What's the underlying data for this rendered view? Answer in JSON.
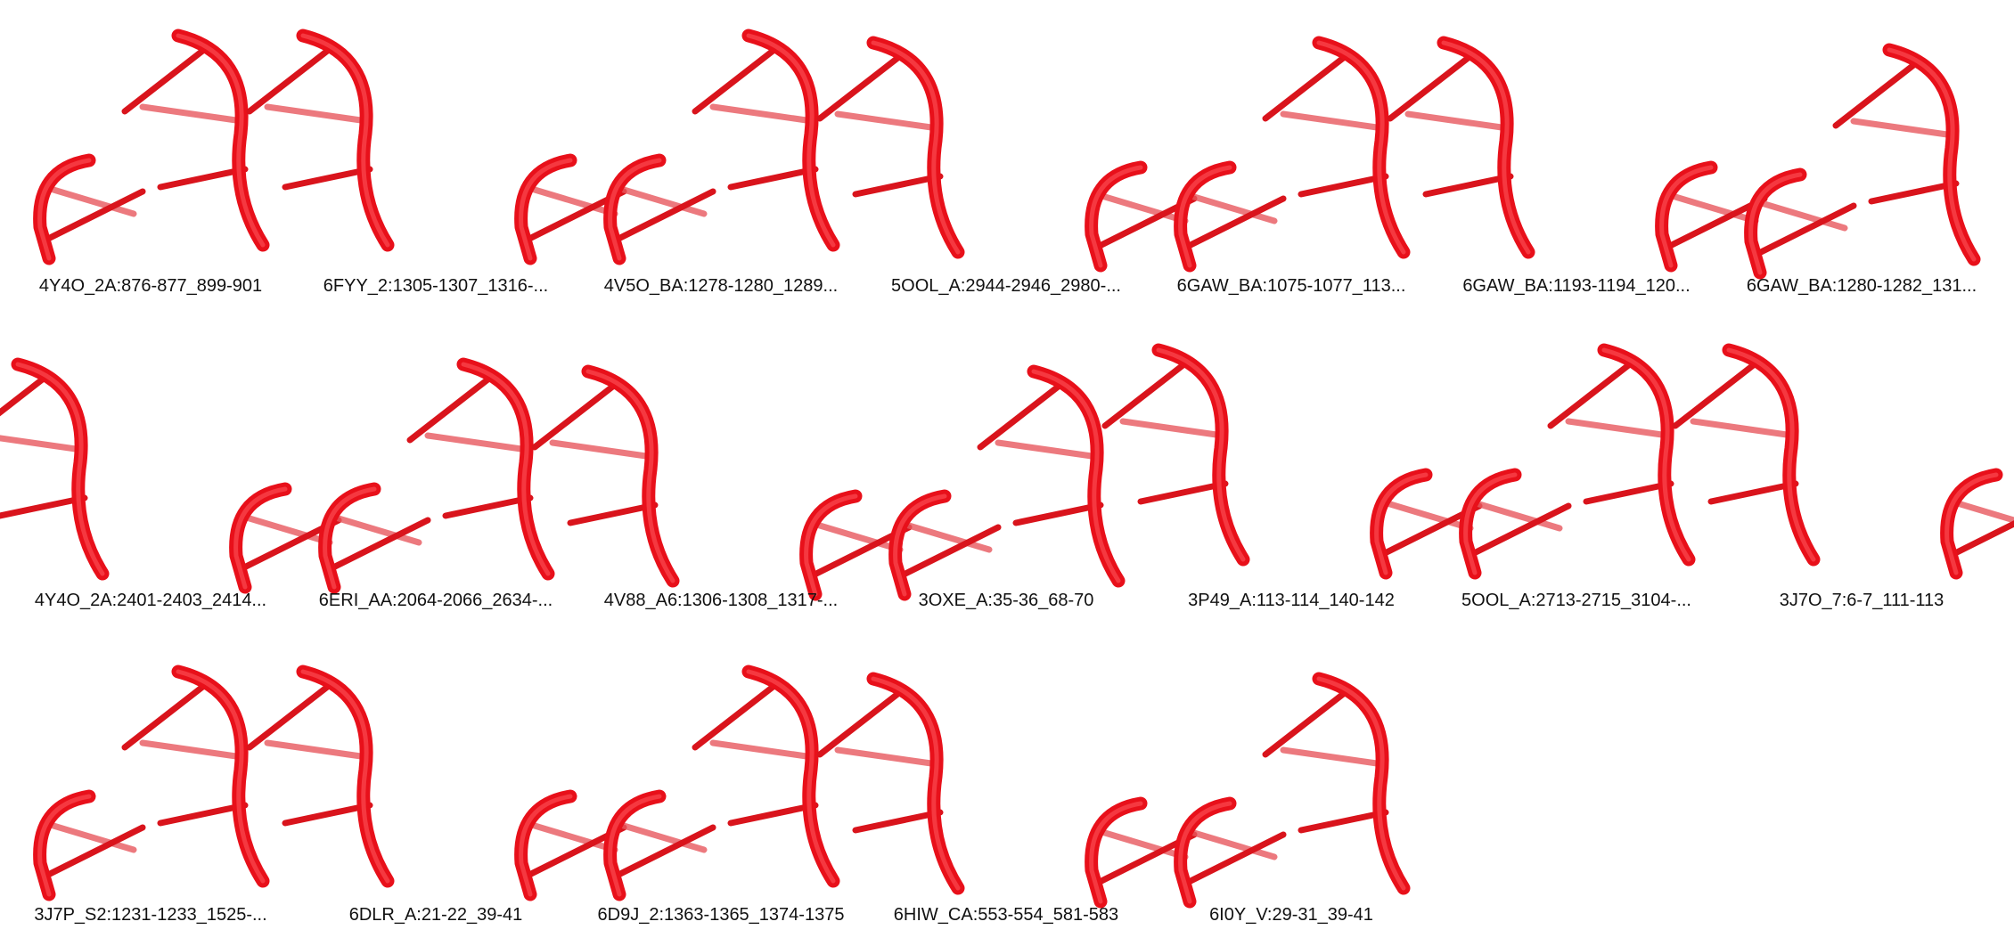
{
  "colors": {
    "backbone": "#e8101a",
    "rung": "#d9141c",
    "label": "#111111"
  },
  "motifs": [
    {
      "label": "4Y4O_2A:876-877_899-901"
    },
    {
      "label": "6FYY_2:1305-1307_1316-..."
    },
    {
      "label": "4V5O_BA:1278-1280_1289..."
    },
    {
      "label": "5OOL_A:2944-2946_2980-..."
    },
    {
      "label": "6GAW_BA:1075-1077_113..."
    },
    {
      "label": "6GAW_BA:1193-1194_120..."
    },
    {
      "label": "6GAW_BA:1280-1282_131..."
    },
    {
      "label": "4Y4O_2A:2401-2403_2414..."
    },
    {
      "label": "6ERI_AA:2064-2066_2634-..."
    },
    {
      "label": "4V88_A6:1306-1308_1317-..."
    },
    {
      "label": "3OXE_A:35-36_68-70"
    },
    {
      "label": "3P49_A:113-114_140-142"
    },
    {
      "label": "5OOL_A:2713-2715_3104-..."
    },
    {
      "label": "3J7O_7:6-7_111-113"
    },
    {
      "label": "3J7P_S2:1231-1233_1525-..."
    },
    {
      "label": "6DLR_A:21-22_39-41"
    },
    {
      "label": "6D9J_2:1363-1365_1374-1375"
    },
    {
      "label": "6HIW_CA:553-554_581-583"
    },
    {
      "label": "6I0Y_V:29-31_39-41"
    }
  ]
}
